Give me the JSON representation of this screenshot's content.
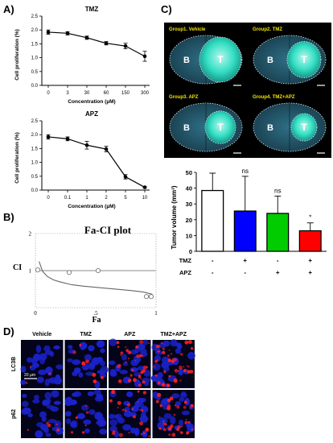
{
  "panel_labels": {
    "a": "A)",
    "b": "B)",
    "c": "C)",
    "d": "D)"
  },
  "chart_data": [
    {
      "id": "tmz",
      "type": "line",
      "title": "TMZ",
      "xlabel": "Concentration (µM)",
      "ylabel": "Cell proliferation (%)",
      "categories": [
        "0",
        "3",
        "30",
        "60",
        "150",
        "300"
      ],
      "values": [
        1.92,
        1.88,
        1.72,
        1.52,
        1.42,
        1.05
      ],
      "errors": [
        0.08,
        0.06,
        0.06,
        0.06,
        0.1,
        0.18
      ],
      "ylim": [
        0,
        2.5
      ],
      "yticks": [
        "0.0",
        "0.5",
        "1.0",
        "1.5",
        "2.0",
        "2.5"
      ]
    },
    {
      "id": "apz",
      "type": "line",
      "title": "APZ",
      "xlabel": "Concentration (µM)",
      "ylabel": "Cell proliferation (%)",
      "categories": [
        "0",
        "0.1",
        "1",
        "2",
        "5",
        "10"
      ],
      "values": [
        1.92,
        1.85,
        1.62,
        1.48,
        0.48,
        0.1
      ],
      "errors": [
        0.08,
        0.07,
        0.14,
        0.1,
        0.08,
        0.03
      ],
      "ylim": [
        0,
        2.5
      ],
      "yticks": [
        "0.0",
        "0.5",
        "1.0",
        "1.5",
        "2.0",
        "2.5"
      ]
    },
    {
      "id": "faci",
      "type": "scatter",
      "title": "Fa-CI plot",
      "xlabel": "Fa",
      "ylabel": "CI",
      "xticks": [
        "0",
        ".5",
        "1"
      ],
      "yticks": [
        "1",
        "2"
      ],
      "xlim": [
        0,
        1
      ],
      "ylim": [
        0,
        2
      ],
      "points": [
        [
          0.02,
          1.02
        ],
        [
          0.28,
          0.95
        ],
        [
          0.52,
          1.0
        ],
        [
          0.92,
          0.3
        ],
        [
          0.96,
          0.3
        ]
      ],
      "curve": [
        [
          0.03,
          1.25
        ],
        [
          0.06,
          0.98
        ],
        [
          0.1,
          0.84
        ],
        [
          0.15,
          0.75
        ],
        [
          0.2,
          0.7
        ],
        [
          0.3,
          0.62
        ],
        [
          0.4,
          0.58
        ],
        [
          0.5,
          0.55
        ],
        [
          0.6,
          0.52
        ],
        [
          0.7,
          0.49
        ],
        [
          0.8,
          0.46
        ],
        [
          0.9,
          0.42
        ],
        [
          0.97,
          0.36
        ]
      ],
      "reference_line": 1
    },
    {
      "id": "tumor",
      "type": "bar",
      "ylabel": "Tumor volume (mm³)",
      "categories": [
        "Vehicle",
        "TMZ",
        "APZ",
        "TMZ+APZ"
      ],
      "values": [
        38.5,
        25.5,
        24,
        13
      ],
      "errors": [
        11,
        22,
        11,
        5
      ],
      "colors": [
        "#ffffff",
        "#0000ff",
        "#00cc00",
        "#ff0000"
      ],
      "annotations": [
        "",
        "ns",
        "ns",
        "*"
      ],
      "ylim": [
        0,
        50
      ],
      "yticks": [
        "0",
        "10",
        "20",
        "30",
        "40",
        "50"
      ],
      "treatment_rows": [
        {
          "label": "TMZ",
          "signs": [
            "-",
            "+",
            "-",
            "+"
          ]
        },
        {
          "label": "APZ",
          "signs": [
            "-",
            "-",
            "+",
            "+"
          ]
        }
      ]
    }
  ],
  "brains": [
    {
      "title": "Group1. Vehicle",
      "b_label": "B",
      "t_label": "T"
    },
    {
      "title": "Group2. TMZ",
      "b_label": "B",
      "t_label": "T"
    },
    {
      "title": "Group3. APZ",
      "b_label": "B",
      "t_label": "T"
    },
    {
      "title": "Group4. TMZ+APZ",
      "b_label": "B",
      "t_label": "T"
    }
  ],
  "micro": {
    "columns": [
      "Vehicle",
      "TMZ",
      "APZ",
      "TMZ+APZ"
    ],
    "rows": [
      "LC3B",
      "p62"
    ],
    "scale": "20 µm",
    "red_density": [
      [
        0.05,
        0.12,
        0.55,
        0.7
      ],
      [
        0.08,
        0.1,
        0.4,
        0.6
      ]
    ]
  }
}
